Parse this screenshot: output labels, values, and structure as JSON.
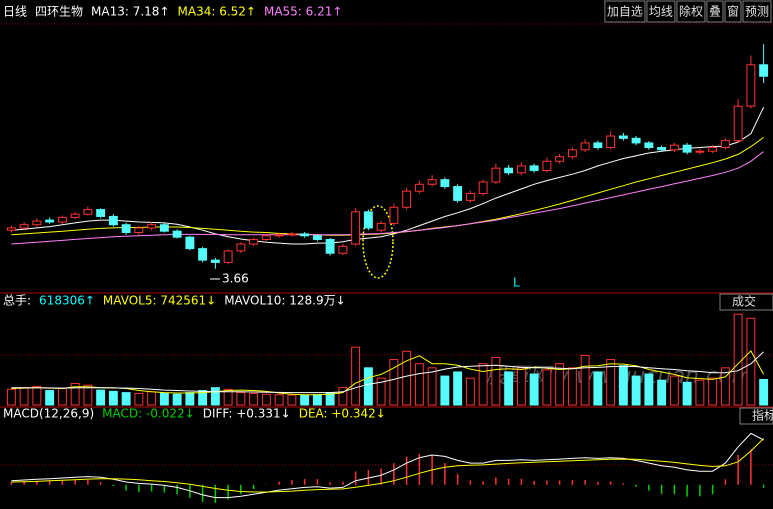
{
  "toolbar": [
    "加自选",
    "均线",
    "除权",
    "叠",
    "窗",
    "预测"
  ],
  "watermark": "股軍网 www.gucuan.com",
  "chart_data": [
    {
      "type": "candlestick",
      "period": "日线",
      "stock": "四环生物",
      "up_color": "#ff3232",
      "down_color": "#54fcfc",
      "ylim": [
        3.2,
        8.9
      ],
      "open": [
        4.5,
        4.55,
        4.62,
        4.72,
        4.68,
        4.78,
        4.85,
        4.95,
        4.8,
        4.62,
        4.45,
        4.55,
        4.62,
        4.48,
        4.35,
        4.1,
        3.85,
        3.8,
        4.05,
        4.2,
        4.3,
        4.38,
        4.4,
        4.42,
        4.38,
        4.3,
        4.0,
        4.2,
        4.9,
        4.5,
        4.65,
        5.0,
        5.35,
        5.5,
        5.6,
        5.45,
        5.15,
        5.3,
        5.55,
        5.85,
        5.75,
        5.9,
        5.8,
        6.0,
        6.1,
        6.25,
        6.4,
        6.3,
        6.55,
        6.5,
        6.4,
        6.3,
        6.25,
        6.35,
        6.2,
        6.22,
        6.3,
        6.45,
        7.2,
        8.1
      ],
      "high": [
        4.6,
        4.68,
        4.76,
        4.78,
        4.82,
        4.9,
        5.02,
        4.98,
        4.85,
        4.66,
        4.6,
        4.68,
        4.66,
        4.52,
        4.38,
        4.14,
        3.9,
        4.08,
        4.24,
        4.34,
        4.42,
        4.45,
        4.46,
        4.46,
        4.4,
        4.33,
        4.2,
        4.98,
        4.95,
        4.7,
        5.08,
        5.42,
        5.58,
        5.7,
        5.65,
        5.5,
        5.36,
        5.6,
        5.95,
        5.92,
        5.98,
        5.95,
        6.08,
        6.16,
        6.3,
        6.48,
        6.45,
        6.65,
        6.62,
        6.55,
        6.44,
        6.34,
        6.4,
        6.4,
        6.28,
        6.35,
        6.5,
        7.35,
        8.3,
        8.55
      ],
      "low": [
        4.45,
        4.52,
        4.58,
        4.64,
        4.64,
        4.74,
        4.82,
        4.76,
        4.58,
        4.4,
        4.4,
        4.5,
        4.45,
        4.32,
        4.06,
        3.8,
        3.66,
        3.76,
        4.0,
        4.16,
        4.26,
        4.34,
        4.36,
        4.34,
        4.26,
        3.95,
        3.96,
        4.16,
        4.5,
        4.45,
        4.6,
        4.95,
        5.3,
        5.45,
        5.4,
        5.1,
        5.1,
        5.25,
        5.5,
        5.7,
        5.7,
        5.75,
        5.76,
        5.95,
        6.05,
        6.2,
        6.25,
        6.26,
        6.45,
        6.35,
        6.25,
        6.2,
        6.2,
        6.15,
        6.15,
        6.18,
        6.26,
        6.4,
        7.15,
        7.7
      ],
      "close": [
        4.55,
        4.62,
        4.7,
        4.68,
        4.78,
        4.85,
        4.95,
        4.8,
        4.62,
        4.45,
        4.55,
        4.62,
        4.48,
        4.35,
        4.1,
        3.85,
        3.8,
        4.05,
        4.2,
        4.3,
        4.38,
        4.4,
        4.42,
        4.38,
        4.3,
        4.0,
        4.15,
        4.9,
        4.55,
        4.65,
        5.0,
        5.35,
        5.5,
        5.6,
        5.45,
        5.15,
        5.3,
        5.55,
        5.85,
        5.75,
        5.9,
        5.8,
        6.0,
        6.1,
        6.25,
        6.4,
        6.3,
        6.55,
        6.5,
        6.4,
        6.3,
        6.25,
        6.35,
        6.2,
        6.22,
        6.3,
        6.45,
        7.2,
        8.1,
        7.85
      ],
      "series": [
        {
          "name": "MA13: 7.18↑",
          "color": "#ffffff",
          "values": [
            4.5,
            4.52,
            4.55,
            4.58,
            4.62,
            4.66,
            4.7,
            4.72,
            4.72,
            4.7,
            4.68,
            4.67,
            4.66,
            4.63,
            4.57,
            4.5,
            4.42,
            4.36,
            4.31,
            4.27,
            4.24,
            4.22,
            4.2,
            4.2,
            4.22,
            4.22,
            4.25,
            4.3,
            4.33,
            4.36,
            4.42,
            4.5,
            4.6,
            4.7,
            4.8,
            4.88,
            4.97,
            5.08,
            5.2,
            5.3,
            5.4,
            5.5,
            5.58,
            5.65,
            5.72,
            5.8,
            5.9,
            5.98,
            6.06,
            6.12,
            6.18,
            6.22,
            6.25,
            6.28,
            6.3,
            6.32,
            6.33,
            6.42,
            6.6,
            7.18
          ]
        },
        {
          "name": "MA34: 6.52↑",
          "color": "#ffff00",
          "values": [
            4.4,
            4.42,
            4.44,
            4.46,
            4.48,
            4.5,
            4.52,
            4.54,
            4.55,
            4.56,
            4.56,
            4.57,
            4.57,
            4.57,
            4.56,
            4.54,
            4.52,
            4.5,
            4.48,
            4.46,
            4.45,
            4.43,
            4.42,
            4.41,
            4.4,
            4.39,
            4.39,
            4.4,
            4.41,
            4.42,
            4.44,
            4.47,
            4.5,
            4.54,
            4.57,
            4.6,
            4.64,
            4.69,
            4.74,
            4.8,
            4.86,
            4.93,
            5.0,
            5.07,
            5.15,
            5.23,
            5.31,
            5.39,
            5.47,
            5.55,
            5.62,
            5.69,
            5.76,
            5.83,
            5.9,
            5.97,
            6.05,
            6.15,
            6.32,
            6.52
          ]
        },
        {
          "name": "MA55: 6.21↑",
          "color": "#ff80ff",
          "values": [
            4.2,
            4.22,
            4.24,
            4.26,
            4.28,
            4.3,
            4.32,
            4.34,
            4.36,
            4.37,
            4.38,
            4.39,
            4.4,
            4.41,
            4.41,
            4.41,
            4.41,
            4.4,
            4.4,
            4.4,
            4.4,
            4.4,
            4.4,
            4.4,
            4.4,
            4.4,
            4.4,
            4.41,
            4.42,
            4.43,
            4.45,
            4.47,
            4.5,
            4.53,
            4.56,
            4.6,
            4.64,
            4.68,
            4.72,
            4.77,
            4.82,
            4.87,
            4.92,
            4.97,
            5.03,
            5.09,
            5.15,
            5.21,
            5.27,
            5.33,
            5.39,
            5.45,
            5.51,
            5.57,
            5.63,
            5.69,
            5.76,
            5.85,
            6.0,
            6.21
          ]
        }
      ],
      "annotations": [
        "3.66",
        "L"
      ]
    },
    {
      "type": "bar",
      "label": "总手:",
      "current_label": "618306↑",
      "tab": "成交",
      "ylim": [
        0,
        2300000
      ],
      "values": [
        380000,
        420000,
        450000,
        350000,
        400000,
        520000,
        480000,
        360000,
        330000,
        300000,
        280000,
        320000,
        290000,
        260000,
        300000,
        350000,
        420000,
        380000,
        300000,
        280000,
        260000,
        250000,
        240000,
        230000,
        250000,
        300000,
        420000,
        1400000,
        900000,
        650000,
        1100000,
        1300000,
        1000000,
        900000,
        700000,
        800000,
        650000,
        1000000,
        1150000,
        800000,
        900000,
        750000,
        850000,
        1000000,
        900000,
        1200000,
        800000,
        1100000,
        950000,
        700000,
        750000,
        600000,
        700000,
        550000,
        600000,
        650000,
        900000,
        2200000,
        2100000,
        618306
      ],
      "series": [
        {
          "name": "MAVOL5: 742561↓",
          "color": "#ffff00",
          "values": [
            400000,
            410000,
            420000,
            410000,
            400000,
            440000,
            440000,
            420000,
            420000,
            400000,
            350000,
            320000,
            300000,
            290000,
            290000,
            300000,
            320000,
            350000,
            360000,
            350000,
            330000,
            290000,
            260000,
            250000,
            250000,
            260000,
            300000,
            530000,
            660000,
            740000,
            900000,
            1070000,
            1190000,
            1000000,
            1000000,
            960000,
            870000,
            810000,
            860000,
            880000,
            860000,
            920000,
            890000,
            860000,
            880000,
            940000,
            950000,
            1000000,
            990000,
            950000,
            860000,
            800000,
            740000,
            660000,
            640000,
            620000,
            680000,
            1000000,
            1310000,
            742561
          ]
        },
        {
          "name": "MAVOL10: 128.9万↓",
          "color": "#ffffff",
          "values": [
            420000,
            420000,
            420000,
            415000,
            410000,
            415000,
            420000,
            420000,
            415000,
            410000,
            400000,
            380000,
            360000,
            350000,
            340000,
            330000,
            320000,
            320000,
            320000,
            315000,
            310000,
            305000,
            300000,
            300000,
            300000,
            300000,
            320000,
            420000,
            500000,
            550000,
            620000,
            700000,
            760000,
            800000,
            870000,
            920000,
            940000,
            950000,
            960000,
            940000,
            910000,
            900000,
            900000,
            890000,
            880000,
            900000,
            910000,
            930000,
            940000,
            930000,
            900000,
            880000,
            860000,
            830000,
            810000,
            780000,
            780000,
            830000,
            1000000,
            1289000
          ]
        }
      ]
    },
    {
      "type": "macd",
      "label": "MACD(12,26,9)",
      "tab": "指标",
      "ylim": [
        -0.15,
        0.42
      ],
      "name": "MACD: -0.022↓",
      "pos_color": "#ff3232",
      "neg_color": "#00d000",
      "values": [
        0.02,
        0.026,
        0.03,
        0.032,
        0.034,
        0.036,
        0.036,
        0.02,
        -0.01,
        -0.044,
        -0.054,
        -0.05,
        -0.058,
        -0.07,
        -0.096,
        -0.126,
        -0.134,
        -0.108,
        -0.07,
        -0.032,
        -0.002,
        0.022,
        0.034,
        0.042,
        0.042,
        0.018,
        0.022,
        0.098,
        0.11,
        0.12,
        0.16,
        0.208,
        0.23,
        0.22,
        0.16,
        0.08,
        0.032,
        0.026,
        0.054,
        0.044,
        0.044,
        0.028,
        0.03,
        0.032,
        0.034,
        0.036,
        0.02,
        0.024,
        0.01,
        -0.016,
        -0.044,
        -0.068,
        -0.07,
        -0.088,
        -0.086,
        -0.07,
        0.04,
        0.22,
        0.26,
        -0.022
      ],
      "series": [
        {
          "name": "DIFF: +0.331↓",
          "color": "#ffffff",
          "values": [
            0.03,
            0.035,
            0.04,
            0.045,
            0.05,
            0.055,
            0.06,
            0.055,
            0.04,
            0.02,
            0.01,
            0.005,
            -0.005,
            -0.02,
            -0.045,
            -0.075,
            -0.095,
            -0.095,
            -0.085,
            -0.07,
            -0.055,
            -0.04,
            -0.03,
            -0.02,
            -0.015,
            -0.025,
            -0.02,
            0.03,
            0.05,
            0.07,
            0.11,
            0.16,
            0.2,
            0.22,
            0.21,
            0.18,
            0.16,
            0.16,
            0.18,
            0.18,
            0.185,
            0.18,
            0.185,
            0.19,
            0.195,
            0.2,
            0.195,
            0.2,
            0.195,
            0.18,
            0.16,
            0.14,
            0.13,
            0.11,
            0.1,
            0.1,
            0.16,
            0.28,
            0.38,
            0.331
          ]
        },
        {
          "name": "DEA: +0.342↓",
          "color": "#ffff00",
          "values": [
            0.02,
            0.022,
            0.025,
            0.029,
            0.033,
            0.037,
            0.042,
            0.045,
            0.045,
            0.042,
            0.037,
            0.03,
            0.024,
            0.015,
            0.003,
            -0.012,
            -0.028,
            -0.041,
            -0.05,
            -0.054,
            -0.054,
            -0.051,
            -0.047,
            -0.041,
            -0.036,
            -0.034,
            -0.031,
            -0.019,
            -0.005,
            0.01,
            0.03,
            0.056,
            0.085,
            0.11,
            0.13,
            0.14,
            0.144,
            0.147,
            0.153,
            0.158,
            0.163,
            0.166,
            0.17,
            0.174,
            0.178,
            0.182,
            0.185,
            0.188,
            0.19,
            0.188,
            0.182,
            0.174,
            0.165,
            0.154,
            0.143,
            0.135,
            0.14,
            0.17,
            0.25,
            0.342
          ]
        }
      ]
    }
  ]
}
